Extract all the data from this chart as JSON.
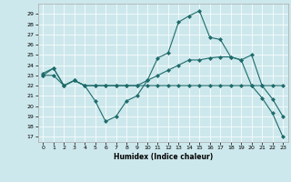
{
  "xlabel": "Humidex (Indice chaleur)",
  "bg_color": "#cde8ec",
  "line_color": "#1e6b6b",
  "ylim": [
    16.5,
    30
  ],
  "xlim": [
    -0.5,
    23.5
  ],
  "yticks": [
    17,
    18,
    19,
    20,
    21,
    22,
    23,
    24,
    25,
    26,
    27,
    28,
    29
  ],
  "xticks": [
    0,
    1,
    2,
    3,
    4,
    5,
    6,
    7,
    8,
    9,
    10,
    11,
    12,
    13,
    14,
    15,
    16,
    17,
    18,
    19,
    20,
    21,
    22,
    23
  ],
  "series1": {
    "x": [
      0,
      1,
      2,
      3,
      4,
      5,
      6,
      7,
      8,
      9,
      10,
      11,
      12,
      13,
      14,
      15,
      16,
      17,
      18,
      19,
      20,
      21,
      22,
      23
    ],
    "y": [
      23.0,
      23.7,
      22.0,
      22.5,
      22.0,
      20.5,
      18.5,
      19.0,
      20.5,
      21.0,
      22.5,
      24.7,
      25.2,
      28.2,
      28.8,
      29.3,
      26.7,
      26.5,
      24.8,
      24.5,
      25.0,
      22.0,
      20.7,
      19.0
    ]
  },
  "series2": {
    "x": [
      0,
      1,
      2,
      3,
      4,
      5,
      6,
      7,
      8,
      9,
      10,
      11,
      12,
      13,
      14,
      15,
      16,
      17,
      18,
      19,
      20,
      21,
      22,
      23
    ],
    "y": [
      23.2,
      23.7,
      22.0,
      22.5,
      22.0,
      22.0,
      22.0,
      22.0,
      22.0,
      22.0,
      22.0,
      22.0,
      22.0,
      22.0,
      22.0,
      22.0,
      22.0,
      22.0,
      22.0,
      22.0,
      22.0,
      22.0,
      22.0,
      22.0
    ]
  },
  "series3": {
    "x": [
      0,
      1,
      2,
      3,
      4,
      5,
      6,
      7,
      8,
      9,
      10,
      11,
      12,
      13,
      14,
      15,
      16,
      17,
      18,
      19,
      20,
      21,
      22,
      23
    ],
    "y": [
      23.0,
      23.0,
      22.0,
      22.5,
      22.0,
      22.0,
      22.0,
      22.0,
      22.0,
      22.0,
      22.5,
      23.0,
      23.5,
      24.0,
      24.5,
      24.5,
      24.7,
      24.8,
      24.8,
      24.5,
      22.0,
      20.8,
      19.3,
      17.0
    ]
  }
}
